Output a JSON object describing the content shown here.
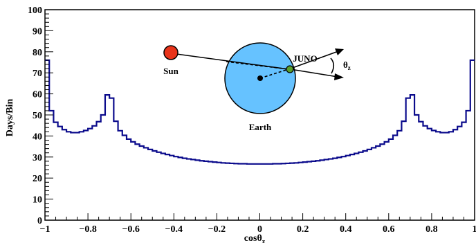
{
  "chart_data": {
    "type": "histogram",
    "xlabel": "cosθ",
    "xlabel_sub": "z",
    "ylabel": "Days/Bin",
    "xlim": [
      -1,
      1
    ],
    "ylim": [
      0,
      100
    ],
    "x_ticks": [
      -1,
      -0.8,
      -0.6,
      -0.4,
      -0.2,
      0,
      0.2,
      0.4,
      0.6,
      0.8,
      1
    ],
    "x_tick_labels": [
      "−1",
      "−0.8",
      "−0.6",
      "−0.4",
      "−0.2",
      "0",
      "0.2",
      "0.4",
      "0.6",
      "0.8",
      "1"
    ],
    "y_ticks": [
      0,
      10,
      20,
      30,
      40,
      50,
      60,
      70,
      80,
      90,
      100
    ],
    "y_tick_labels": [
      "0",
      "10",
      "20",
      "30",
      "40",
      "50",
      "60",
      "70",
      "80",
      "90",
      "100"
    ],
    "bin_width": 0.02,
    "line_color": "#0b0b8c",
    "values": [
      76.0,
      52.0,
      46.5,
      44.5,
      43.0,
      42.0,
      41.6,
      41.6,
      42.0,
      42.6,
      43.5,
      44.8,
      46.8,
      50.0,
      59.5,
      58.0,
      47.0,
      42.5,
      40.3,
      38.5,
      37.2,
      36.1,
      35.2,
      34.4,
      33.6,
      32.9,
      32.3,
      31.7,
      31.2,
      30.7,
      30.2,
      29.8,
      29.4,
      29.1,
      28.8,
      28.5,
      28.2,
      28.0,
      27.8,
      27.6,
      27.4,
      27.2,
      27.1,
      27.0,
      26.9,
      26.8,
      26.8,
      26.7,
      26.7,
      26.7,
      26.7,
      26.7,
      26.7,
      26.8,
      26.8,
      26.9,
      27.0,
      27.1,
      27.2,
      27.4,
      27.6,
      27.8,
      28.0,
      28.2,
      28.5,
      28.8,
      29.1,
      29.4,
      29.8,
      30.2,
      30.7,
      31.2,
      31.7,
      32.3,
      32.9,
      33.6,
      34.4,
      35.2,
      36.1,
      37.2,
      38.5,
      40.3,
      42.5,
      47.0,
      58.0,
      59.5,
      50.0,
      46.8,
      44.8,
      43.5,
      42.6,
      42.0,
      41.6,
      41.6,
      42.0,
      43.0,
      44.5,
      46.5,
      52.0,
      76.0
    ]
  },
  "inset": {
    "sun_label": "Sun",
    "earth_label": "Earth",
    "detector_label": "JUNO",
    "angle_label": "θ",
    "angle_sub": "z",
    "sun_color": "#e8331a",
    "earth_color": "#66c2ff",
    "detector_color": "#5aa02c"
  }
}
